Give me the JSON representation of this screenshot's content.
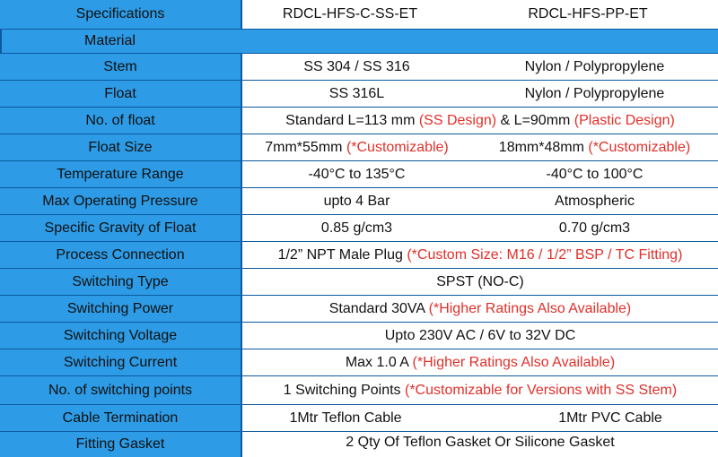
{
  "header": {
    "label": "Specifications",
    "col1": "RDCL-HFS-C-SS-ET",
    "col2": "RDCL-HFS-PP-ET"
  },
  "material_label": "Material",
  "rows": [
    {
      "label": "Stem",
      "col1": "SS 304 / SS 316",
      "col2": "Nylon / Polypropylene"
    },
    {
      "label": "Float",
      "col1": "SS 316L",
      "col2": "Nylon / Polypropylene"
    },
    {
      "label": "No. of float",
      "span": "Standard L=113 mm ",
      "span_red1": "(SS Design)",
      "span_mid": " & L=90mm ",
      "span_red2": "(Plastic Design)"
    },
    {
      "label": "Float Size",
      "col1": "7mm*55mm ",
      "col1_red": "(*Customizable)",
      "col2": "18mm*48mm ",
      "col2_red": "(*Customizable)"
    },
    {
      "label": "Temperature Range",
      "col1": "-40°C to 135°C",
      "col2": "-40°C to 100°C"
    },
    {
      "label": "Max Operating Pressure",
      "col1": "upto 4 Bar",
      "col2": "Atmospheric"
    },
    {
      "label": "Specific Gravity of Float",
      "col1": "0.85 g/cm3",
      "col2": "0.70 g/cm3"
    },
    {
      "label": "Process Connection",
      "span": "1/2” NPT Male Plug ",
      "span_red": "(*Custom Size: M16 / 1/2” BSP / TC Fitting)"
    },
    {
      "label": "Switching Type",
      "span": "SPST (NO-C)"
    },
    {
      "label": "Switching Power",
      "span": "Standard 30VA ",
      "span_red": "(*Higher Ratings Also Available)"
    },
    {
      "label": "Switching Voltage",
      "span": "Upto 230V AC / 6V to 32V DC"
    },
    {
      "label": "Switching Current",
      "span": "Max 1.0 A ",
      "span_red": "(*Higher Ratings Also Available)"
    },
    {
      "label": "No. of switching points",
      "span": "1 Switching Points ",
      "span_red": "(*Customizable for Versions with SS Stem)"
    },
    {
      "label": "Cable Termination",
      "col1": "1Mtr Teflon Cable",
      "col2": "1Mtr PVC Cable"
    },
    {
      "label": "Fitting Gasket",
      "span": "2 Qty Of Teflon Gasket Or Silicone Gasket"
    }
  ],
  "colors": {
    "label_bg": "#2d9be5",
    "border": "#0b5aa0",
    "note_red": "#e0302a"
  }
}
